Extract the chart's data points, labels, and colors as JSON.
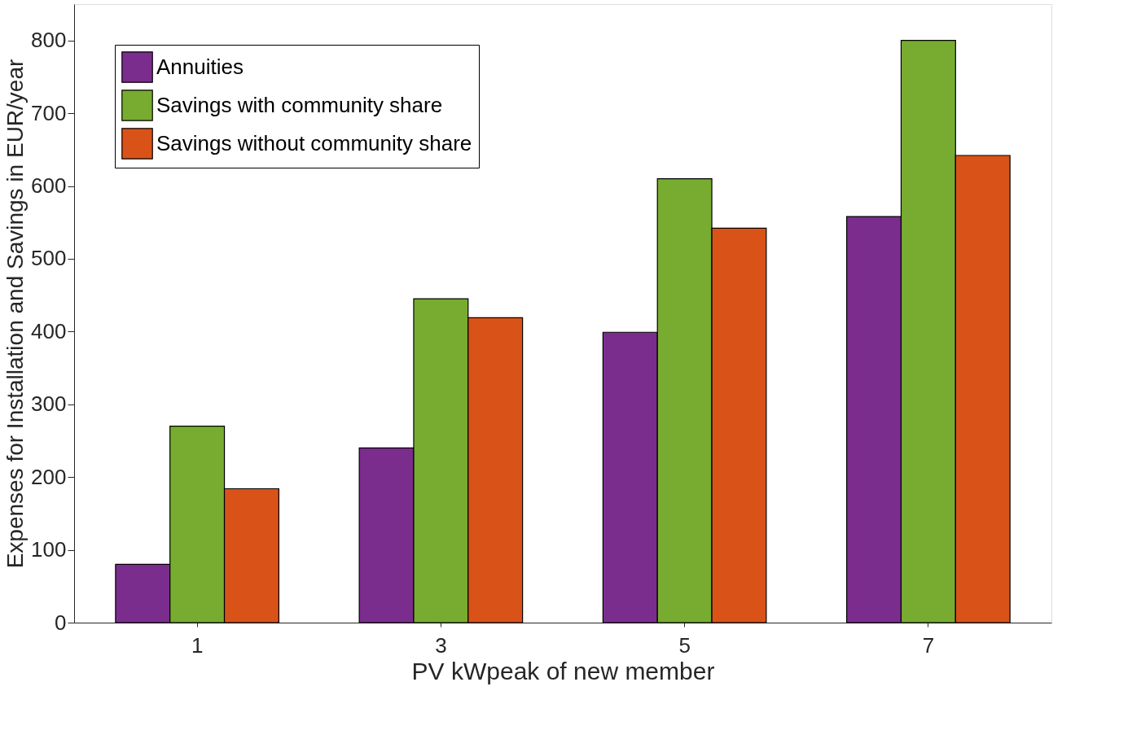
{
  "chart_data": {
    "type": "bar",
    "xlabel": "PV kWpeak of new member",
    "ylabel": "Expenses for Installation and Savings in EUR/year",
    "categories": [
      "1",
      "3",
      "5",
      "7"
    ],
    "series": [
      {
        "name": "Annuities",
        "color": "#7b2d8e",
        "values": [
          80,
          240,
          399,
          558
        ]
      },
      {
        "name": "Savings with community share",
        "color": "#77ac30",
        "values": [
          270,
          445,
          610,
          800
        ]
      },
      {
        "name": "Savings without community share",
        "color": "#d95319",
        "values": [
          184,
          419,
          542,
          642
        ]
      }
    ],
    "ylim": [
      0,
      850
    ],
    "yticks": [
      0,
      100,
      200,
      300,
      400,
      500,
      600,
      700,
      800
    ],
    "grid": false,
    "legend": "top left"
  }
}
